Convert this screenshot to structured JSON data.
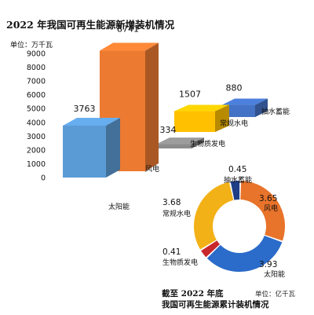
{
  "colors": {
    "wind": "#E8732A",
    "solar": "#2B6BC9",
    "biomass": "#C8272C",
    "hydro": "#F2B117",
    "pumped": "#203E86",
    "bar_wind": "#EC7A31",
    "bar_solar": "#5B9BD5",
    "bar_biomass": "#8C8C8C",
    "bar_hydro": "#FFC000",
    "bar_pumped": "#4472C4"
  },
  "chart_data": [
    {
      "type": "bar",
      "title": "2022 年我国可再生能源新增装机情况",
      "unit_label": "单位：万千瓦",
      "ylim": [
        0,
        9000
      ],
      "yticks": [
        0,
        1000,
        2000,
        3000,
        4000,
        5000,
        6000,
        7000,
        8000,
        9000
      ],
      "grid": false,
      "categories": [
        "太阳能",
        "风电",
        "生物质发电",
        "常规水电",
        "抽水蓄能"
      ],
      "values": [
        3763,
        8741,
        334,
        1507,
        880
      ],
      "data_labels": [
        "3763",
        "8741",
        "334",
        "1507",
        "880"
      ]
    },
    {
      "type": "pie",
      "title_line1": "截至 2022 年底",
      "title_line2": "我国可再生能源累计装机情况",
      "unit_label": "单位：亿千瓦",
      "categories": [
        "风电",
        "太阳能",
        "生物质发电",
        "常规水电",
        "抽水蓄能"
      ],
      "values": [
        3.65,
        3.93,
        0.41,
        3.68,
        0.45
      ],
      "data_labels": [
        "3.65",
        "3.93",
        "0.41",
        "3.68",
        "0.45"
      ]
    }
  ]
}
